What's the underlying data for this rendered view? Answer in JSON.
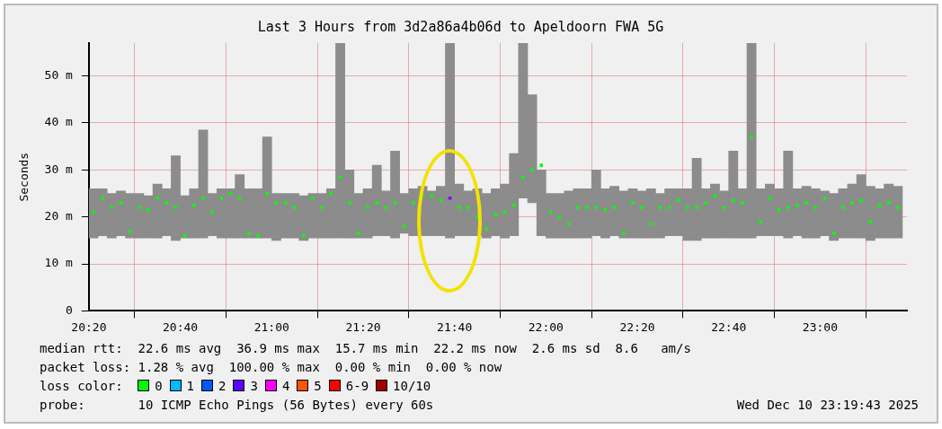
{
  "chart_data": {
    "type": "bar",
    "title": "Last 3 Hours from 3d2a86a4b06d to Apeldoorn FWA 5G",
    "ylabel": "Seconds",
    "x": [
      "2025-12-10T20:21",
      "2025-12-10T20:23",
      "2025-12-10T20:25",
      "2025-12-10T20:27",
      "2025-12-10T20:29",
      "2025-12-10T20:31",
      "2025-12-10T20:33",
      "2025-12-10T20:35",
      "2025-12-10T20:37",
      "2025-12-10T20:39",
      "2025-12-10T20:41",
      "2025-12-10T20:43",
      "2025-12-10T20:45",
      "2025-12-10T20:47",
      "2025-12-10T20:49",
      "2025-12-10T20:51",
      "2025-12-10T20:53",
      "2025-12-10T20:55",
      "2025-12-10T20:57",
      "2025-12-10T20:59",
      "2025-12-10T21:01",
      "2025-12-10T21:03",
      "2025-12-10T21:05",
      "2025-12-10T21:07",
      "2025-12-10T21:09",
      "2025-12-10T21:11",
      "2025-12-10T21:13",
      "2025-12-10T21:15",
      "2025-12-10T21:17",
      "2025-12-10T21:19",
      "2025-12-10T21:21",
      "2025-12-10T21:23",
      "2025-12-10T21:25",
      "2025-12-10T21:27",
      "2025-12-10T21:29",
      "2025-12-10T21:31",
      "2025-12-10T21:33",
      "2025-12-10T21:35",
      "2025-12-10T21:37",
      "2025-12-10T21:39",
      "2025-12-10T21:41",
      "2025-12-10T21:43",
      "2025-12-10T21:45",
      "2025-12-10T21:47",
      "2025-12-10T21:49",
      "2025-12-10T21:51",
      "2025-12-10T21:53",
      "2025-12-10T21:55",
      "2025-12-10T21:57",
      "2025-12-10T21:59",
      "2025-12-10T22:01",
      "2025-12-10T22:03",
      "2025-12-10T22:05",
      "2025-12-10T22:07",
      "2025-12-10T22:09",
      "2025-12-10T22:11",
      "2025-12-10T22:13",
      "2025-12-10T22:15",
      "2025-12-10T22:17",
      "2025-12-10T22:19",
      "2025-12-10T22:21",
      "2025-12-10T22:23",
      "2025-12-10T22:25",
      "2025-12-10T22:27",
      "2025-12-10T22:29",
      "2025-12-10T22:31",
      "2025-12-10T22:33",
      "2025-12-10T22:35",
      "2025-12-10T22:37",
      "2025-12-10T22:39",
      "2025-12-10T22:41",
      "2025-12-10T22:43",
      "2025-12-10T22:45",
      "2025-12-10T22:47",
      "2025-12-10T22:49",
      "2025-12-10T22:51",
      "2025-12-10T22:53",
      "2025-12-10T22:55",
      "2025-12-10T22:57",
      "2025-12-10T22:59",
      "2025-12-10T23:01",
      "2025-12-10T23:03",
      "2025-12-10T23:05",
      "2025-12-10T23:07",
      "2025-12-10T23:09",
      "2025-12-10T23:11",
      "2025-12-10T23:13",
      "2025-12-10T23:15",
      "2025-12-10T23:17"
    ],
    "series": [
      {
        "color": "#8c8c8c",
        "base": [
          15.5,
          16,
          15.5,
          16,
          15.5,
          15.5,
          15.5,
          15.5,
          16,
          15,
          15.5,
          15.5,
          15.5,
          16,
          15.5,
          15.5,
          15.5,
          15.5,
          15.5,
          15.5,
          15,
          15.5,
          15.5,
          15,
          15.5,
          15.5,
          15.5,
          15.5,
          15.5,
          15.5,
          15.5,
          16,
          16,
          15.5,
          16.5,
          16,
          16,
          16,
          16,
          15.5,
          16,
          16,
          16,
          15.5,
          16,
          15.5,
          16,
          24,
          23,
          16,
          15.5,
          15.5,
          15.5,
          15.5,
          15.5,
          16,
          15.5,
          16,
          15.5,
          15.5,
          15.5,
          15.5,
          15.5,
          16,
          16,
          15,
          15,
          15.5,
          15.5,
          15.5,
          15.5,
          15.5,
          15.5,
          16,
          16,
          16,
          15.5,
          16,
          15.5,
          15.5,
          16,
          15,
          15.5,
          15.5,
          15.5,
          15,
          15.5,
          15.5,
          15.5
        ],
        "values": [
          10.5,
          10,
          9.5,
          9.5,
          9.5,
          9.5,
          9,
          11.5,
          10,
          18,
          9,
          10.5,
          23,
          9,
          10.5,
          10.5,
          13.5,
          10.5,
          10.5,
          21.5,
          10,
          9.5,
          9.5,
          9.5,
          9.5,
          9.5,
          10.5,
          41.5,
          14.5,
          9.5,
          10.5,
          15,
          9.5,
          18.5,
          8.5,
          10,
          10.5,
          9.5,
          10.5,
          41.5,
          11,
          9.5,
          10,
          9.5,
          10,
          11.5,
          17.5,
          33,
          23,
          14,
          9.5,
          9.5,
          10,
          10.5,
          10.5,
          14,
          10.5,
          10.5,
          10,
          10.5,
          10,
          10.5,
          9.5,
          10,
          10,
          11,
          17.5,
          10.5,
          11.5,
          10,
          18.5,
          10.5,
          41.5,
          10,
          11,
          10,
          18.5,
          10,
          11,
          10.5,
          9.5,
          10,
          10.5,
          11.5,
          13.5,
          11.5,
          10.5,
          11.5,
          11
        ]
      },
      {
        "type": "scatter",
        "color": "#00ff00",
        "values": [
          21,
          24,
          22,
          23,
          17,
          22,
          21.5,
          24,
          23,
          22,
          16,
          22.5,
          24,
          21,
          24,
          25,
          24,
          16.5,
          16,
          25,
          23,
          23,
          22,
          16,
          24,
          22,
          25,
          28.5,
          23,
          16.5,
          22,
          23,
          22,
          23,
          18,
          23,
          24.5,
          24.5,
          23.5,
          null,
          22,
          22,
          20,
          17.5,
          20.5,
          21,
          22.5,
          28.5,
          30,
          31,
          21,
          20,
          18.5,
          22,
          22,
          22,
          21.5,
          22,
          16.5,
          23,
          22,
          18.5,
          22,
          22,
          23.5,
          22,
          22,
          23,
          24.5,
          22,
          23.5,
          23,
          37,
          19,
          24,
          21.5,
          22,
          22.5,
          23,
          22,
          24,
          16.5,
          22,
          23,
          23.5,
          19,
          22.5,
          23,
          22
        ]
      },
      {
        "type": "scatter",
        "color": "#8000ff",
        "x": [
          "2025-12-10T21:39"
        ],
        "values": [
          24
        ]
      }
    ],
    "xlim": [
      "2025-12-10T20:20",
      "2025-12-10T23:19"
    ],
    "xticks": [
      {
        "value": "2025-12-10T20:20",
        "label": "20:20"
      },
      {
        "value": "2025-12-10T20:40",
        "label": "20:40"
      },
      {
        "value": "2025-12-10T21:00",
        "label": "21:00"
      },
      {
        "value": "2025-12-10T21:20",
        "label": "21:20"
      },
      {
        "value": "2025-12-10T21:40",
        "label": "21:40"
      },
      {
        "value": "2025-12-10T22:00",
        "label": "22:00"
      },
      {
        "value": "2025-12-10T22:20",
        "label": "22:20"
      },
      {
        "value": "2025-12-10T22:40",
        "label": "22:40"
      },
      {
        "value": "2025-12-10T23:00",
        "label": "23:00"
      }
    ],
    "ylim": [
      0,
      57
    ],
    "yticks": [
      0,
      {
        "value": 10,
        "label": "10 m"
      },
      {
        "value": 20,
        "label": "20 m"
      },
      {
        "value": 30,
        "label": "30 m"
      },
      {
        "value": 40,
        "label": "40 m"
      },
      {
        "value": 50,
        "label": "50 m"
      }
    ],
    "grid": true,
    "legend": false,
    "marker": "square",
    "annotations": [
      "median rtt:  22.6 ms avg  36.9 ms max  15.7 ms min  22.2 ms now  2.6 ms sd  8.6   am/s",
      "packet loss: 1.28 % avg  100.00 % max  0.00 % min  0.00 % now",
      "loss color:  0  1  2  3  4  5  6-9  10/10",
      "probe:       10 ICMP Echo Pings (56 Bytes) every 60s",
      "Wed Dec 10 23:19:43 2025"
    ]
  }
}
